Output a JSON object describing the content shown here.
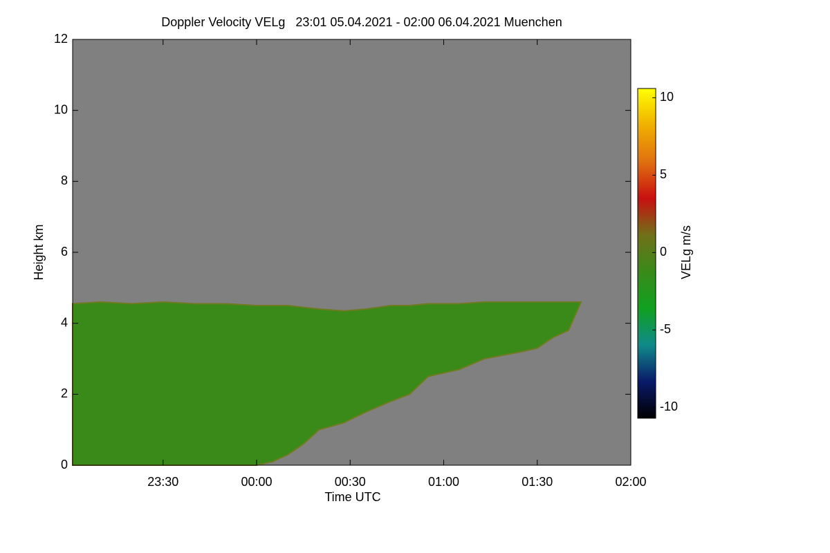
{
  "chart_data": {
    "type": "area",
    "title": "Doppler Velocity VELg   23:01 05.04.2021 - 02:00 06.04.2021 Muenchen",
    "x_label": "Time UTC",
    "y_label": "Height km",
    "colorbar_label": "VELg m/s",
    "background": "#808080",
    "fill": "#3a8a1a",
    "edge": "#6f7a22",
    "x": [
      1,
      10,
      20,
      30,
      40,
      50,
      60,
      65,
      70,
      75,
      80,
      88,
      95,
      103,
      109,
      115,
      125,
      133,
      145,
      150,
      155,
      160,
      164
    ],
    "echo_top": [
      4.55,
      4.6,
      4.55,
      4.6,
      4.55,
      4.55,
      4.5,
      4.5,
      4.5,
      4.45,
      4.4,
      4.35,
      4.4,
      4.5,
      4.5,
      4.55,
      4.55,
      4.6,
      4.6,
      4.6,
      4.6,
      4.6,
      4.6
    ],
    "echo_base": [
      0,
      0,
      0,
      0,
      0,
      0,
      0,
      0.1,
      0.3,
      0.6,
      1.0,
      1.2,
      1.5,
      1.8,
      2.0,
      2.5,
      2.7,
      3.0,
      3.2,
      3.3,
      3.6,
      3.8,
      4.6
    ],
    "xlim": [
      1,
      180
    ],
    "xticks": [
      {
        "value": 30,
        "label": "23:30"
      },
      {
        "value": 60,
        "label": "00:00"
      },
      {
        "value": 90,
        "label": "00:30"
      },
      {
        "value": 120,
        "label": "01:00"
      },
      {
        "value": 150,
        "label": "01:30"
      },
      {
        "value": 180,
        "label": "02:00"
      }
    ],
    "ylim": [
      0,
      12
    ],
    "yticks": [
      0,
      2,
      4,
      6,
      8,
      10,
      12
    ],
    "clim": [
      -10.7,
      10.6
    ],
    "cticks": [
      -10,
      -5,
      0,
      5,
      10
    ],
    "colormap": [
      "#000000",
      "#0a1a6a",
      "#108a8a",
      "#10a020",
      "#3a8a1a",
      "#707018",
      "#c81010",
      "#e07010",
      "#f0b000",
      "#ffff00"
    ]
  }
}
